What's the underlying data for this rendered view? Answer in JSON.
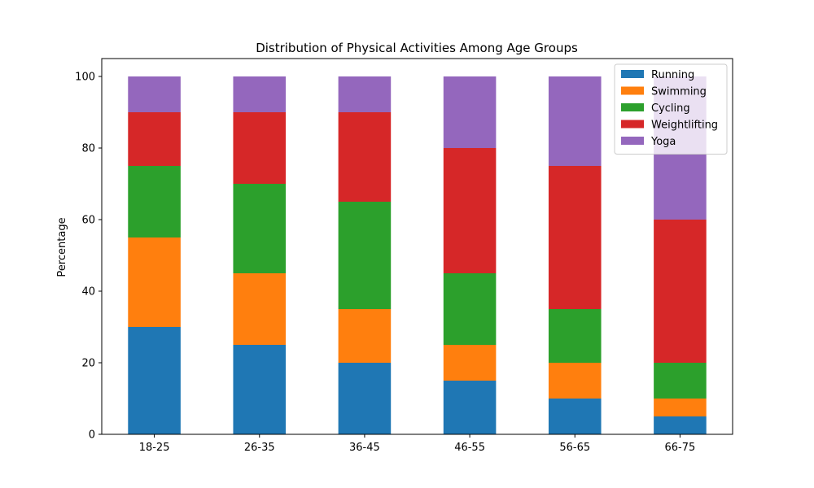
{
  "chart_data": {
    "type": "bar",
    "stacked": true,
    "title": "Distribution of Physical Activities Among Age Groups",
    "xlabel": "",
    "ylabel": "Percentage",
    "ylim": [
      0,
      105
    ],
    "yticks": [
      0,
      20,
      40,
      60,
      80,
      100
    ],
    "categories": [
      "18-25",
      "26-35",
      "36-45",
      "46-55",
      "56-65",
      "66-75"
    ],
    "series": [
      {
        "name": "Running",
        "color": "#1f77b4",
        "values": [
          30,
          25,
          20,
          15,
          10,
          5
        ]
      },
      {
        "name": "Swimming",
        "color": "#ff7f0e",
        "values": [
          25,
          20,
          15,
          10,
          10,
          5
        ]
      },
      {
        "name": "Cycling",
        "color": "#2ca02c",
        "values": [
          20,
          25,
          30,
          20,
          15,
          10
        ]
      },
      {
        "name": "Weightlifting",
        "color": "#d62728",
        "values": [
          15,
          20,
          25,
          35,
          40,
          40
        ]
      },
      {
        "name": "Yoga",
        "color": "#9467bd",
        "values": [
          10,
          10,
          10,
          20,
          25,
          40
        ]
      }
    ],
    "grid": false,
    "legend_position": "top-right"
  }
}
